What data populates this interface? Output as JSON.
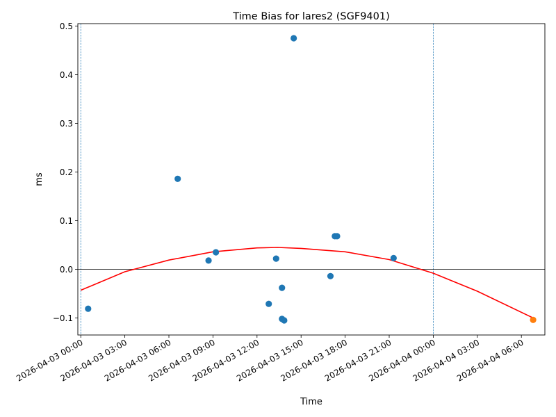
{
  "chart_data": {
    "type": "scatter",
    "title": "Time Bias for lares2 (SGF9401)",
    "xlabel": "Time",
    "ylabel": "ms",
    "xlim_hours": [
      -0.2,
      31.6
    ],
    "ylim": [
      -0.135,
      0.505
    ],
    "grid": false,
    "x_ticks": [
      {
        "hour": 0,
        "label": "2026-04-03 00:00"
      },
      {
        "hour": 3,
        "label": "2026-04-03 03:00"
      },
      {
        "hour": 6,
        "label": "2026-04-03 06:00"
      },
      {
        "hour": 9,
        "label": "2026-04-03 09:00"
      },
      {
        "hour": 12,
        "label": "2026-04-03 12:00"
      },
      {
        "hour": 15,
        "label": "2026-04-03 15:00"
      },
      {
        "hour": 18,
        "label": "2026-04-03 18:00"
      },
      {
        "hour": 21,
        "label": "2026-04-03 21:00"
      },
      {
        "hour": 24,
        "label": "2026-04-04 00:00"
      },
      {
        "hour": 27,
        "label": "2026-04-04 03:00"
      },
      {
        "hour": 30,
        "label": "2026-04-04 06:00"
      }
    ],
    "y_ticks": [
      {
        "value": -0.1,
        "label": "−0.1"
      },
      {
        "value": 0.0,
        "label": "0.0"
      },
      {
        "value": 0.1,
        "label": "0.1"
      },
      {
        "value": 0.2,
        "label": "0.2"
      },
      {
        "value": 0.3,
        "label": "0.3"
      },
      {
        "value": 0.4,
        "label": "0.4"
      },
      {
        "value": 0.5,
        "label": "0.5"
      }
    ],
    "series": [
      {
        "color": "#1f77b4",
        "points": [
          {
            "hour": 0.5,
            "value": -0.081
          },
          {
            "hour": 6.6,
            "value": 0.186
          },
          {
            "hour": 8.7,
            "value": 0.018
          },
          {
            "hour": 9.2,
            "value": 0.035
          },
          {
            "hour": 12.8,
            "value": -0.071
          },
          {
            "hour": 13.3,
            "value": 0.022
          },
          {
            "hour": 13.7,
            "value": -0.038
          },
          {
            "hour": 13.7,
            "value": -0.102
          },
          {
            "hour": 13.85,
            "value": -0.105
          },
          {
            "hour": 14.5,
            "value": 0.475
          },
          {
            "hour": 17.0,
            "value": -0.014
          },
          {
            "hour": 17.3,
            "value": 0.068
          },
          {
            "hour": 17.45,
            "value": 0.068
          },
          {
            "hour": 21.3,
            "value": 0.023
          }
        ]
      },
      {
        "color": "#ff7f0e",
        "points": [
          {
            "hour": 30.8,
            "value": -0.104
          }
        ]
      }
    ],
    "fit_curve": {
      "color": "#ff0000",
      "points": [
        {
          "hour": 0.0,
          "value": -0.043
        },
        {
          "hour": 3.0,
          "value": -0.005
        },
        {
          "hour": 6.0,
          "value": 0.019
        },
        {
          "hour": 9.0,
          "value": 0.036
        },
        {
          "hour": 12.0,
          "value": 0.044
        },
        {
          "hour": 13.4,
          "value": 0.045
        },
        {
          "hour": 15.0,
          "value": 0.043
        },
        {
          "hour": 18.0,
          "value": 0.036
        },
        {
          "hour": 21.0,
          "value": 0.02
        },
        {
          "hour": 24.0,
          "value": -0.008
        },
        {
          "hour": 27.0,
          "value": -0.045
        },
        {
          "hour": 30.8,
          "value": -0.1
        }
      ]
    },
    "vertical_lines_hours": [
      0,
      24
    ],
    "horizontal_line_value": 0.0
  }
}
